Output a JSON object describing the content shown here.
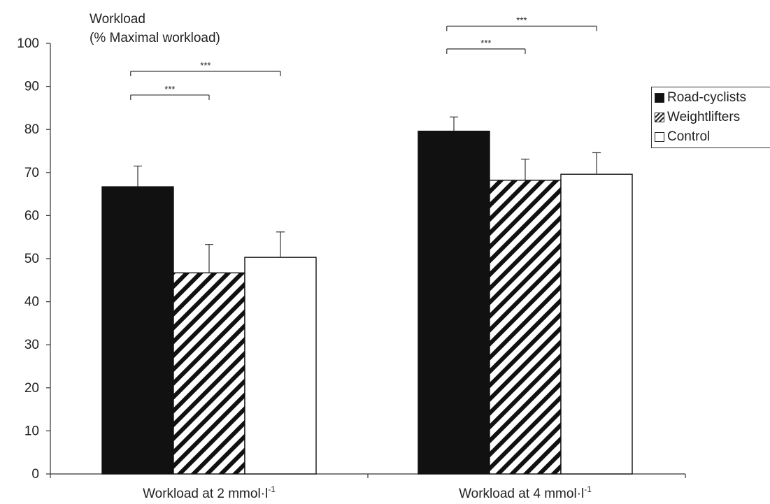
{
  "chart_data": {
    "type": "bar",
    "title": "",
    "ylabel_line1": "Workload",
    "ylabel_line2": "(% Maximal workload)",
    "xlabel": "",
    "ylim": [
      0,
      100
    ],
    "yticks": [
      0,
      10,
      20,
      30,
      40,
      50,
      60,
      70,
      80,
      90,
      100
    ],
    "categories": [
      {
        "pre": "Workload at 2 mmol·l",
        "sup": "-1"
      },
      {
        "pre": "Workload at 4 mmol·l",
        "sup": "-1"
      }
    ],
    "series": [
      {
        "name": "Road-cyclists",
        "values": [
          66.7,
          79.6
        ],
        "errors": [
          4.8,
          3.3
        ],
        "fill": "#111111",
        "pattern": "solid"
      },
      {
        "name": "Weightlifters",
        "values": [
          46.7,
          68.2
        ],
        "errors": [
          6.6,
          4.9
        ],
        "fill": "#ffffff",
        "pattern": "hatch"
      },
      {
        "name": "Control",
        "values": [
          50.3,
          69.6
        ],
        "errors": [
          5.9,
          5.0
        ],
        "fill": "#ffffff",
        "pattern": "none"
      }
    ],
    "significance": [
      {
        "category": 0,
        "from": 0,
        "to": 1,
        "level": 88,
        "label": "***"
      },
      {
        "category": 0,
        "from": 0,
        "to": 2,
        "level": 93.5,
        "label": "***"
      },
      {
        "category": 1,
        "from": 0,
        "to": 1,
        "level": 98.7,
        "label": "***"
      },
      {
        "category": 1,
        "from": 0,
        "to": 2,
        "level": 104,
        "label": "***"
      }
    ],
    "legend_position": "right",
    "grid": false
  }
}
